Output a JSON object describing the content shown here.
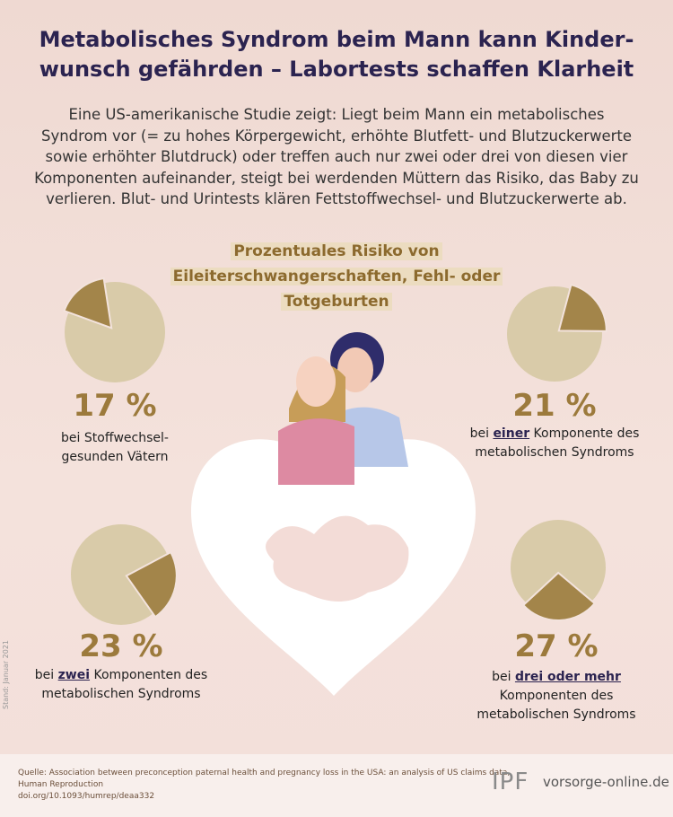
{
  "header": {
    "title": [
      "Metabolisches Syndrom beim Mann kann Kinder-",
      "wunsch gefährden – Labortests schaffen Klarheit"
    ],
    "intro": [
      "Eine US-amerikanische Studie zeigt: Liegt beim Mann ein metabolisches",
      "Syndrom vor (= zu hohes Körpergewicht, erhöhte Blutfett- und Blutzuckerwerte",
      "sowie erhöhter Blutdruck) oder treffen auch nur zwei oder drei von diesen vier",
      "Komponenten aufeinander, steigt bei werdenden Müttern das Risiko, das Baby zu",
      "verlieren. Blut- und Urintests klären Fettstoffwechsel- und Blutzuckerwerte ab."
    ],
    "subtitle": [
      "Prozentuales Risiko von",
      "Eileiterschwangerschaften, Fehl- oder",
      "Totgeburten"
    ]
  },
  "chart_data": [
    {
      "type": "pie",
      "values": [
        17
      ],
      "value_labels": [
        "17 %"
      ],
      "color": "#a3854a",
      "base_color": "#d9cba9",
      "caption": [
        [
          {
            "text": "bei Stoffwechsel-"
          }
        ],
        [
          {
            "text": "gesunden Vätern"
          }
        ]
      ]
    },
    {
      "type": "pie",
      "values": [
        21
      ],
      "value_labels": [
        "21 %"
      ],
      "color": "#a3854a",
      "base_color": "#d9cba9",
      "caption": [
        [
          {
            "text": "bei "
          },
          {
            "text": "einer",
            "underline": true
          },
          {
            "text": " Komponente des"
          }
        ],
        [
          {
            "text": "metabolischen Syndroms"
          }
        ]
      ]
    },
    {
      "type": "pie",
      "values": [
        23
      ],
      "value_labels": [
        "23 %"
      ],
      "color": "#a3854a",
      "base_color": "#d9cba9",
      "caption": [
        [
          {
            "text": "bei "
          },
          {
            "text": "zwei",
            "underline": true
          },
          {
            "text": " Komponenten des"
          }
        ],
        [
          {
            "text": "metabolischen Syndroms"
          }
        ]
      ]
    },
    {
      "type": "pie",
      "values": [
        27
      ],
      "value_labels": [
        "27 %"
      ],
      "color": "#a3854a",
      "base_color": "#d9cba9",
      "caption": [
        [
          {
            "text": "bei "
          },
          {
            "text": "drei oder mehr",
            "underline": true
          }
        ],
        [
          {
            "text": "Komponenten des"
          }
        ],
        [
          {
            "text": "metabolischen Syndroms"
          }
        ]
      ]
    }
  ],
  "footer": {
    "source": [
      "Quelle: Association between preconception paternal health and pregnancy loss in the USA: an analysis of US claims data,",
      "Human Reproduction",
      "doi.org/10.1093/humrep/deaa332"
    ],
    "logo": "IPF",
    "site": "vorsorge-online.de",
    "stand": "Stand: Januar 2021"
  }
}
